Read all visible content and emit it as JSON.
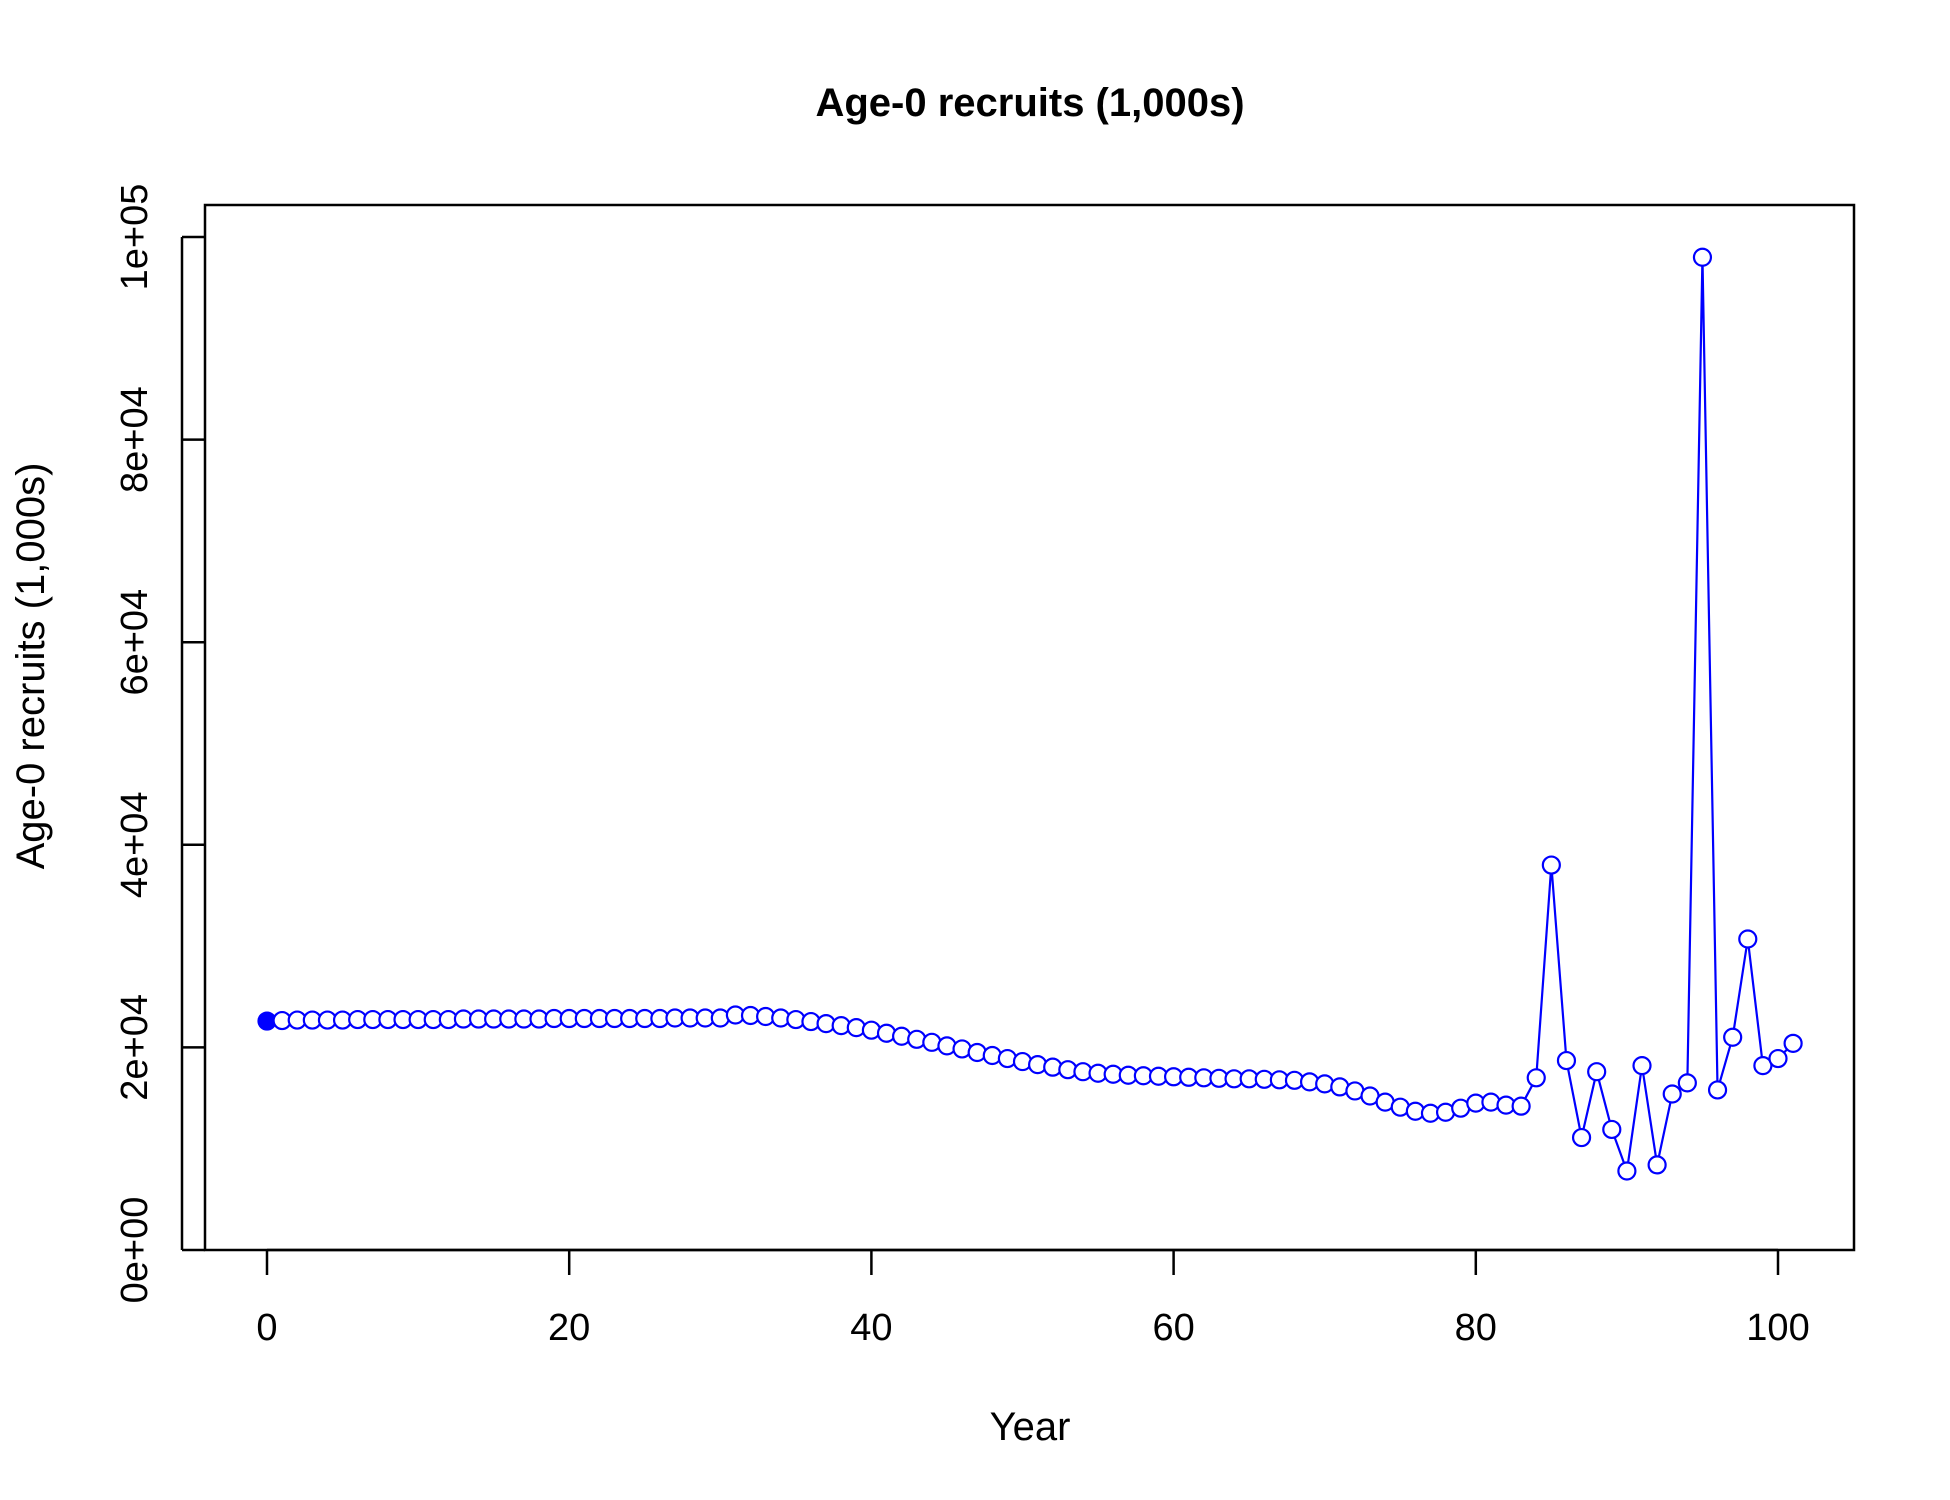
{
  "chart_data": {
    "type": "line",
    "title": "Age-0 recruits (1,000s)",
    "xlabel": "Year",
    "ylabel": "Age-0 recruits (1,000s)",
    "xlim": [
      0,
      101
    ],
    "ylim": [
      0,
      100000
    ],
    "x_ticks": [
      0,
      20,
      40,
      60,
      80,
      100
    ],
    "x_tick_labels": [
      "0",
      "20",
      "40",
      "60",
      "80",
      "100"
    ],
    "y_ticks": [
      0,
      20000,
      40000,
      60000,
      80000,
      100000
    ],
    "y_tick_labels": [
      "0e+00",
      "2e+04",
      "4e+04",
      "6e+04",
      "8e+04",
      "1e+05"
    ],
    "grid": false,
    "marker": "open-circle",
    "first_point_filled": true,
    "color": "#0000ff",
    "series": [
      {
        "x": [
          0,
          1,
          2,
          3,
          4,
          5,
          6,
          7,
          8,
          9,
          10,
          11,
          12,
          13,
          14,
          15,
          16,
          17,
          18,
          19,
          20,
          21,
          22,
          23,
          24,
          25,
          26,
          27,
          28,
          29,
          30,
          31,
          32,
          33,
          34,
          35,
          36,
          37,
          38,
          39,
          40,
          41,
          42,
          43,
          44,
          45,
          46,
          47,
          48,
          49,
          50,
          51,
          52,
          53,
          54,
          55,
          56,
          57,
          58,
          59,
          60,
          61,
          62,
          63,
          64,
          65,
          66,
          67,
          68,
          69,
          70,
          71,
          72,
          73,
          74,
          75,
          76,
          77,
          78,
          79,
          80,
          81,
          82,
          83,
          84,
          85,
          86,
          87,
          88,
          89,
          90,
          91,
          92,
          93,
          94,
          95,
          96,
          97,
          98,
          99,
          100,
          101
        ],
        "values": [
          22600,
          22650,
          22700,
          22700,
          22700,
          22700,
          22750,
          22750,
          22750,
          22750,
          22750,
          22750,
          22750,
          22800,
          22800,
          22800,
          22800,
          22800,
          22800,
          22850,
          22850,
          22850,
          22850,
          22850,
          22850,
          22850,
          22850,
          22900,
          22900,
          22900,
          22900,
          23200,
          23150,
          23050,
          22900,
          22750,
          22550,
          22350,
          22150,
          21950,
          21700,
          21400,
          21100,
          20800,
          20500,
          20150,
          19850,
          19500,
          19200,
          18900,
          18600,
          18300,
          18050,
          17800,
          17600,
          17450,
          17350,
          17250,
          17200,
          17150,
          17100,
          17050,
          17000,
          16950,
          16900,
          16900,
          16850,
          16800,
          16750,
          16600,
          16400,
          16100,
          15700,
          15200,
          14600,
          14100,
          13700,
          13500,
          13600,
          14000,
          14500,
          14600,
          14300,
          14200,
          17000,
          38000,
          18700,
          11100,
          17600,
          11900,
          7800,
          18200,
          8400,
          15400,
          16500,
          98000,
          15800,
          21000,
          30700,
          18200,
          18900,
          20400
        ]
      }
    ]
  }
}
